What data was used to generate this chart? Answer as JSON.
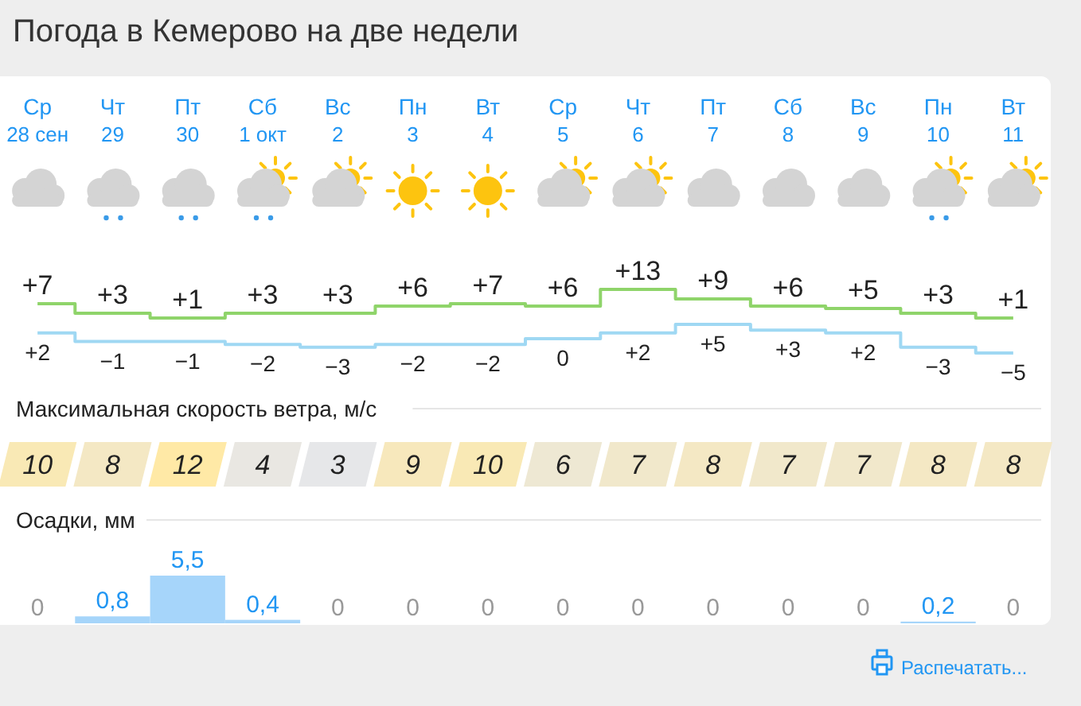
{
  "chart_data": [
    {
      "type": "step",
      "title": "Погода в Кемерово на две недели",
      "categories": [
        "Ср 28 сен",
        "Чт 29",
        "Пт 30",
        "Сб 1 окт",
        "Вс 2",
        "Пн 3",
        "Вт 4",
        "Ср 5",
        "Чт 6",
        "Пт 7",
        "Сб 8",
        "Вс 9",
        "Пн 10",
        "Вт 11"
      ],
      "series": [
        {
          "color": "#8fd46a",
          "values": [
            7,
            3,
            1,
            3,
            3,
            6,
            7,
            6,
            13,
            9,
            6,
            5,
            3,
            1
          ],
          "value_labels": [
            "+7",
            "+3",
            "+1",
            "+3",
            "+3",
            "+6",
            "+7",
            "+6",
            "+13",
            "+9",
            "+6",
            "+5",
            "+3",
            "+1"
          ]
        }
      ]
    },
    {
      "type": "step",
      "categories": [
        null,
        null,
        null,
        null,
        null,
        null,
        null,
        null,
        null,
        null,
        null,
        null,
        null,
        null
      ],
      "series": [
        {
          "color": "#9fd8f3",
          "values": [
            2,
            -1,
            -1,
            -2,
            -3,
            -2,
            -2,
            0,
            2,
            5,
            3,
            2,
            -3,
            -5
          ],
          "value_labels": [
            "+2",
            "−1",
            "−1",
            "−2",
            "−3",
            "−2",
            "−2",
            "0",
            "+2",
            "+5",
            "+3",
            "+2",
            "−3",
            "−5"
          ]
        }
      ]
    },
    {
      "type": "other",
      "title": "Максимальная скорость ветра, м/с",
      "values": [
        10,
        8,
        12,
        4,
        3,
        9,
        10,
        6,
        7,
        8,
        7,
        7,
        8,
        8
      ],
      "data_labels": true
    },
    {
      "type": "bar",
      "title": "Осадки, мм",
      "categories": [
        null,
        null,
        null,
        null,
        null,
        null,
        null,
        null,
        null,
        null,
        null,
        null,
        null,
        null
      ],
      "values": [
        0,
        0.8,
        5.5,
        0.4,
        0,
        0,
        0,
        0,
        0,
        0,
        0,
        0,
        0.2,
        0
      ],
      "value_labels": [
        "0",
        "0,8",
        "5,5",
        "0,4",
        "0",
        "0",
        "0",
        "0",
        "0",
        "0",
        "0",
        "0",
        "0,2",
        "0"
      ],
      "color": "#a6d5fa",
      "annotations": [
        "Распечатать..."
      ]
    }
  ]
}
